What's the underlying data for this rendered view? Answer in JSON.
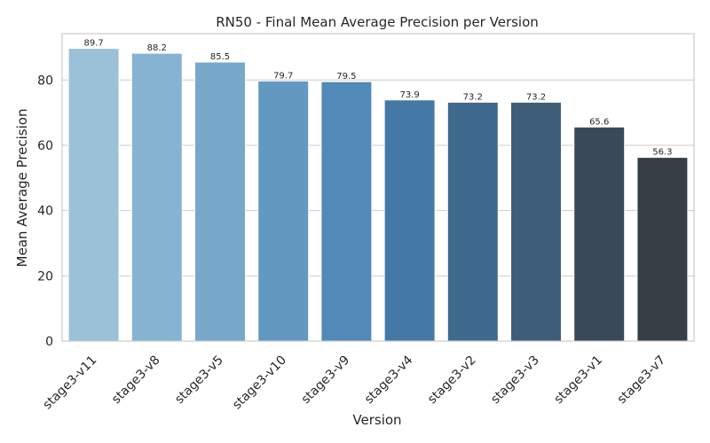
{
  "chart_data": {
    "type": "bar",
    "title": "RN50 - Final Mean Average Precision per Version",
    "xlabel": "Version",
    "ylabel": "Mean Average Precision",
    "categories": [
      "stage3-v11",
      "stage3-v8",
      "stage3-v5",
      "stage3-v10",
      "stage3-v9",
      "stage3-v4",
      "stage3-v2",
      "stage3-v3",
      "stage3-v1",
      "stage3-v7"
    ],
    "values": [
      89.7,
      88.2,
      85.5,
      79.7,
      79.5,
      73.9,
      73.2,
      73.2,
      65.6,
      56.3
    ],
    "value_labels": [
      "89.7",
      "88.2",
      "85.5",
      "79.7",
      "79.5",
      "73.9",
      "73.2",
      "73.2",
      "65.6",
      "56.3"
    ],
    "colors": [
      "#9bc1d8",
      "#87b3d3",
      "#77a7c9",
      "#6399c1",
      "#5189b8",
      "#4479a6",
      "#3f6a8d",
      "#3e5d78",
      "#394959",
      "#363f46"
    ],
    "yticks": [
      0,
      20,
      40,
      60,
      80
    ],
    "ylim": [
      0,
      94.2
    ],
    "grid": true,
    "legend": "none"
  }
}
